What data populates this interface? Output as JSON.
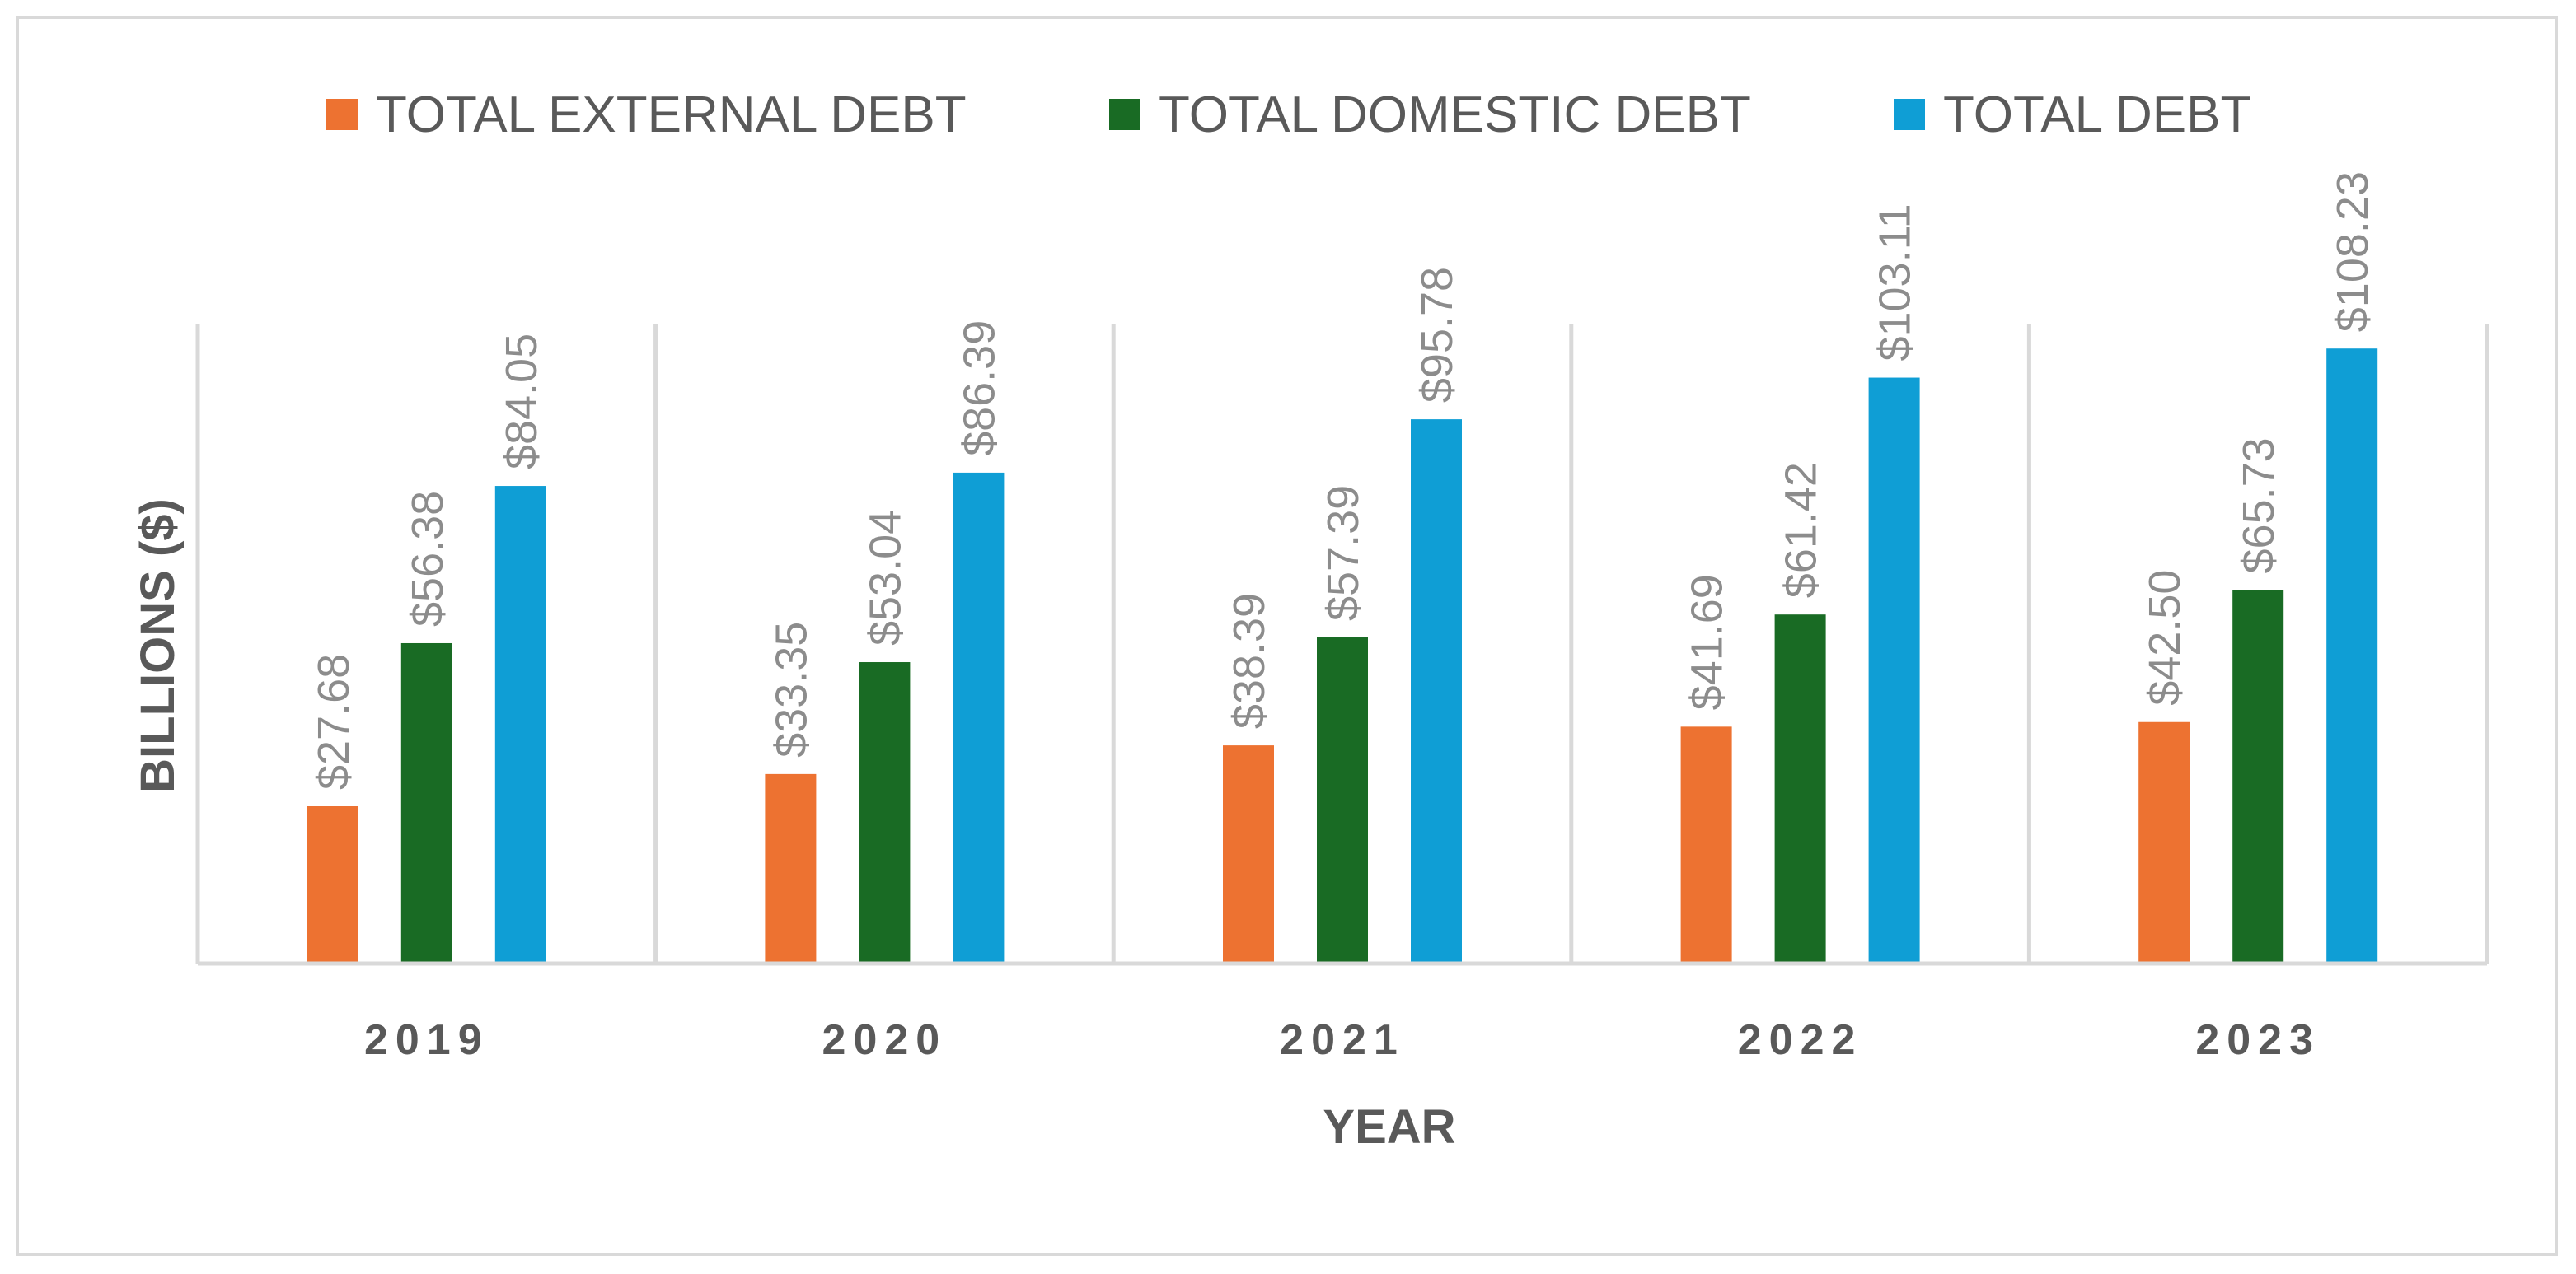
{
  "chart_data": {
    "type": "bar",
    "title": "",
    "xlabel": "YEAR",
    "ylabel": "BILLIONS ($)",
    "categories": [
      "2019",
      "2020",
      "2021",
      "2022",
      "2023"
    ],
    "series": [
      {
        "name": "TOTAL EXTERNAL DEBT",
        "color": "#ed7231",
        "values": [
          27.68,
          33.35,
          38.39,
          41.69,
          42.5
        ],
        "labels": [
          "$27.68",
          "$33.35",
          "$38.39",
          "$41.69",
          "$42.50"
        ]
      },
      {
        "name": "TOTAL DOMESTIC DEBT",
        "color": "#196b24",
        "values": [
          56.38,
          53.04,
          57.39,
          61.42,
          65.73
        ],
        "labels": [
          "$56.38",
          "$53.04",
          "$57.39",
          "$61.42",
          "$65.73"
        ]
      },
      {
        "name": "TOTAL DEBT",
        "color": "#0f9ed5",
        "values": [
          84.05,
          86.39,
          95.78,
          103.11,
          108.23
        ],
        "labels": [
          "$84.05",
          "$86.39",
          "$95.78",
          "$103.11",
          "$108.23"
        ]
      }
    ],
    "ylim": [
      0,
      125
    ],
    "grid": false,
    "category_dividers": true,
    "legend": "top",
    "data_label_orientation": "vertical",
    "colors": {
      "axis": "#d9d9d9",
      "text": "#595959",
      "data_label": "#8c8c8c"
    }
  }
}
